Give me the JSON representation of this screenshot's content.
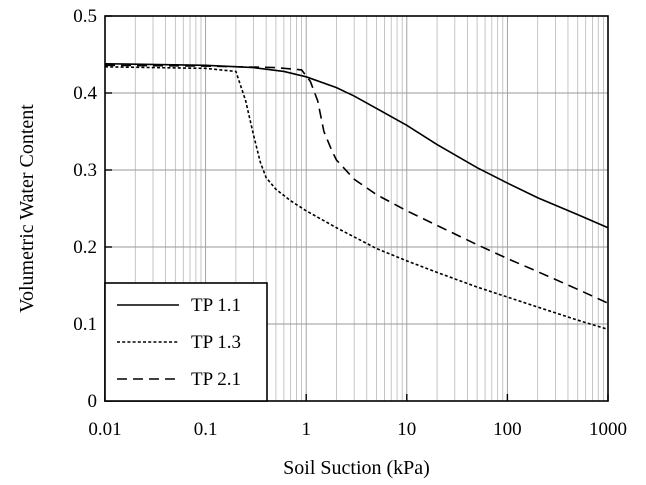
{
  "chart_data": {
    "type": "line",
    "title": "",
    "xlabel": "Soil Suction (kPa)",
    "ylabel": "Volumetric Water Content",
    "xscale": "log",
    "xlim": [
      0.01,
      1000
    ],
    "ylim": [
      0,
      0.5
    ],
    "x_ticks": [
      "0.01",
      "0.1",
      "1",
      "10",
      "100",
      "1000"
    ],
    "y_ticks": [
      "0",
      "0.1",
      "0.2",
      "0.3",
      "0.4",
      "0.5"
    ],
    "grid": true,
    "legend": "bottom-left",
    "series": [
      {
        "name": "TP 1.1",
        "dash": "solid",
        "x": [
          0.01,
          0.1,
          0.3,
          0.6,
          1,
          2,
          3,
          5,
          10,
          20,
          50,
          100,
          200,
          500,
          1000
        ],
        "y": [
          0.438,
          0.436,
          0.433,
          0.428,
          0.421,
          0.407,
          0.396,
          0.38,
          0.358,
          0.333,
          0.303,
          0.283,
          0.264,
          0.242,
          0.225
        ]
      },
      {
        "name": "TP 1.3",
        "dash": "dotted",
        "x": [
          0.01,
          0.1,
          0.2,
          0.25,
          0.3,
          0.35,
          0.4,
          0.5,
          0.7,
          1,
          2,
          5,
          10,
          20,
          50,
          100,
          200,
          500,
          1000
        ],
        "y": [
          0.434,
          0.432,
          0.428,
          0.39,
          0.345,
          0.31,
          0.29,
          0.275,
          0.26,
          0.247,
          0.225,
          0.198,
          0.182,
          0.167,
          0.148,
          0.135,
          0.122,
          0.105,
          0.093
        ]
      },
      {
        "name": "TP 2.1",
        "dash": "dashed",
        "x": [
          0.01,
          0.1,
          0.5,
          0.9,
          1.1,
          1.3,
          1.5,
          1.8,
          2,
          3,
          5,
          10,
          20,
          50,
          100,
          200,
          500,
          1000
        ],
        "y": [
          0.436,
          0.435,
          0.433,
          0.43,
          0.415,
          0.39,
          0.35,
          0.325,
          0.313,
          0.288,
          0.268,
          0.247,
          0.228,
          0.203,
          0.185,
          0.168,
          0.145,
          0.127
        ]
      }
    ]
  }
}
